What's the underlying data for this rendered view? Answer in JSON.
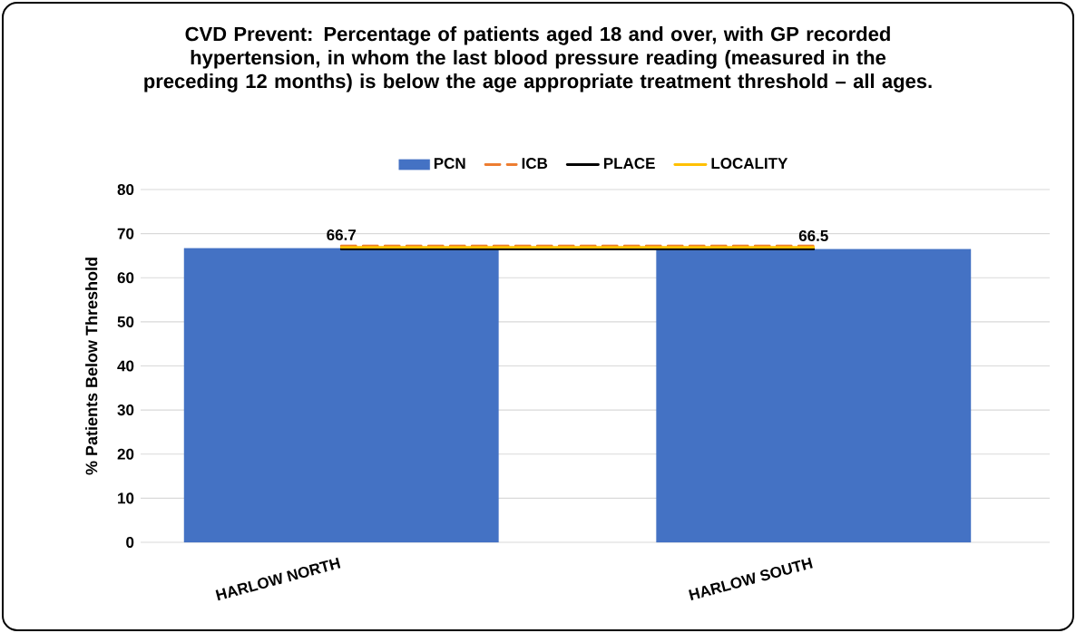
{
  "chart_data": {
    "type": "bar",
    "title": "CVD Prevent: Percentage of patients aged 18 and over, with GP recorded hypertension, in whom the last blood pressure reading (measured in the preceding 12 months) is below the age appropriate treatment threshold – all ages.",
    "ylabel": "% Patients Below Threshold",
    "categories": [
      "HARLOW NORTH",
      "HARLOW SOUTH"
    ],
    "series": [
      {
        "name": "PCN",
        "color": "#4472c4",
        "values": [
          66.7,
          66.5
        ],
        "data_labels": true
      },
      {
        "name": "ICB",
        "type": "line",
        "line_style": "dashed",
        "color": "#ed7d31",
        "values": [
          67.2,
          67.2
        ]
      },
      {
        "name": "PLACE",
        "type": "line",
        "line_style": "solid",
        "color": "#000000",
        "values": [
          66.5,
          66.5
        ]
      },
      {
        "name": "LOCALITY",
        "type": "line",
        "line_style": "solid",
        "color": "#ffc000",
        "values": [
          66.9,
          66.9
        ]
      }
    ],
    "ylim": [
      0,
      80
    ],
    "yticks": [
      0,
      10,
      20,
      30,
      40,
      50,
      60,
      70,
      80
    ],
    "grid": "y",
    "legend": "top"
  }
}
